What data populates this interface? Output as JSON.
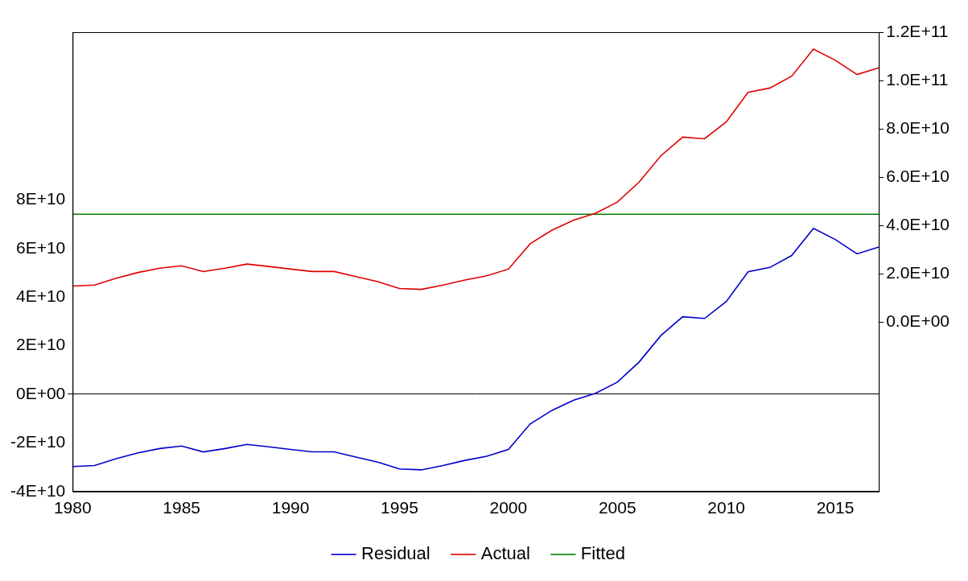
{
  "chart_data": {
    "type": "line",
    "x": [
      1980,
      1981,
      1982,
      1983,
      1984,
      1985,
      1986,
      1987,
      1988,
      1989,
      1990,
      1991,
      1992,
      1993,
      1994,
      1995,
      1996,
      1997,
      1998,
      1999,
      2000,
      2001,
      2002,
      2003,
      2004,
      2005,
      2006,
      2007,
      2008,
      2009,
      2010,
      2011,
      2012,
      2013,
      2014,
      2015,
      2016,
      2017
    ],
    "xlim": [
      1980,
      2017
    ],
    "xticks": [
      1980,
      1985,
      1990,
      1995,
      2000,
      2005,
      2010,
      2015
    ],
    "ylim": [
      -40000000000.0,
      149000000000.0
    ],
    "yticks": [
      {
        "value": -40000000000.0,
        "label": "-4E+10"
      },
      {
        "value": -20000000000.0,
        "label": "-2E+10"
      },
      {
        "value": 0,
        "label": "0E+00"
      },
      {
        "value": 20000000000.0,
        "label": "2E+10"
      },
      {
        "value": 40000000000.0,
        "label": "4E+10"
      },
      {
        "value": 60000000000.0,
        "label": "6E+10"
      },
      {
        "value": 80000000000.0,
        "label": "8E+10"
      }
    ],
    "y2lim": [
      -70000000000.0,
      120000000000.0
    ],
    "y2ticks": [
      {
        "value": 0,
        "label": "0.0E+00"
      },
      {
        "value": 20000000000.0,
        "label": "2.0E+10"
      },
      {
        "value": 40000000000.0,
        "label": "4.0E+10"
      },
      {
        "value": 60000000000.0,
        "label": "6.0E+10"
      },
      {
        "value": 80000000000.0,
        "label": "8.0E+10"
      },
      {
        "value": 100000000000.0,
        "label": "1.0E+11"
      },
      {
        "value": 120000000000.0,
        "label": "1.2E+11"
      }
    ],
    "grid": false,
    "legend": "bottom",
    "series": [
      {
        "name": "Residual",
        "color": "#0000cc",
        "values": [
          -29700000000.0,
          -29300000000.0,
          -26500000000.0,
          -24100000000.0,
          -22300000000.0,
          -21300000000.0,
          -23700000000.0,
          -22300000000.0,
          -20600000000.0,
          -21600000000.0,
          -22700000000.0,
          -23700000000.0,
          -23700000000.0,
          -25800000000.0,
          -27900000000.0,
          -30700000000.0,
          -31100000000.0,
          -29300000000.0,
          -27200000000.0,
          -25500000000.0,
          -22700000000.0,
          -12200000000.0,
          -6600000000.0,
          -2400000000.0,
          400000000.0,
          5000000000.0,
          13300000000.0,
          24200000000.0,
          31900000000.0,
          31200000000.0,
          38200000000.0,
          50400000000.0,
          52200000000.0,
          57100000000.0,
          68300000000.0,
          63700000000.0,
          57800000000.0,
          60600000000.0
        ]
      },
      {
        "name": "Actual",
        "color": "#e00000",
        "axis": "y2",
        "values": [
          15000000000.0,
          15400000000.0,
          18200000000.0,
          20600000000.0,
          22400000000.0,
          23400000000.0,
          21000000000.0,
          22400000000.0,
          24100000000.0,
          23100000000.0,
          22000000000.0,
          21000000000.0,
          21000000000.0,
          18900000000.0,
          16800000000.0,
          14000000000.0,
          13600000000.0,
          15400000000.0,
          17500000000.0,
          19200000000.0,
          22000000000.0,
          32500000000.0,
          38100000000.0,
          42300000000.0,
          45100000000.0,
          49700000000.0,
          58000000000.0,
          68900000000.0,
          76600000000.0,
          75900000000.0,
          82900000000.0,
          95100000000.0,
          96900000000.0,
          101800000000.0,
          113000000000.0,
          108400000000.0,
          102500000000.0,
          105300000000.0
        ]
      },
      {
        "name": "Fitted",
        "color": "#008000",
        "axis": "y2",
        "values": [
          44700000000.0,
          44700000000.0,
          44700000000.0,
          44700000000.0,
          44700000000.0,
          44700000000.0,
          44700000000.0,
          44700000000.0,
          44700000000.0,
          44700000000.0,
          44700000000.0,
          44700000000.0,
          44700000000.0,
          44700000000.0,
          44700000000.0,
          44700000000.0,
          44700000000.0,
          44700000000.0,
          44700000000.0,
          44700000000.0,
          44700000000.0,
          44700000000.0,
          44700000000.0,
          44700000000.0,
          44700000000.0,
          44700000000.0,
          44700000000.0,
          44700000000.0,
          44700000000.0,
          44700000000.0,
          44700000000.0,
          44700000000.0,
          44700000000.0,
          44700000000.0,
          44700000000.0,
          44700000000.0,
          44700000000.0,
          44700000000.0
        ]
      }
    ]
  }
}
